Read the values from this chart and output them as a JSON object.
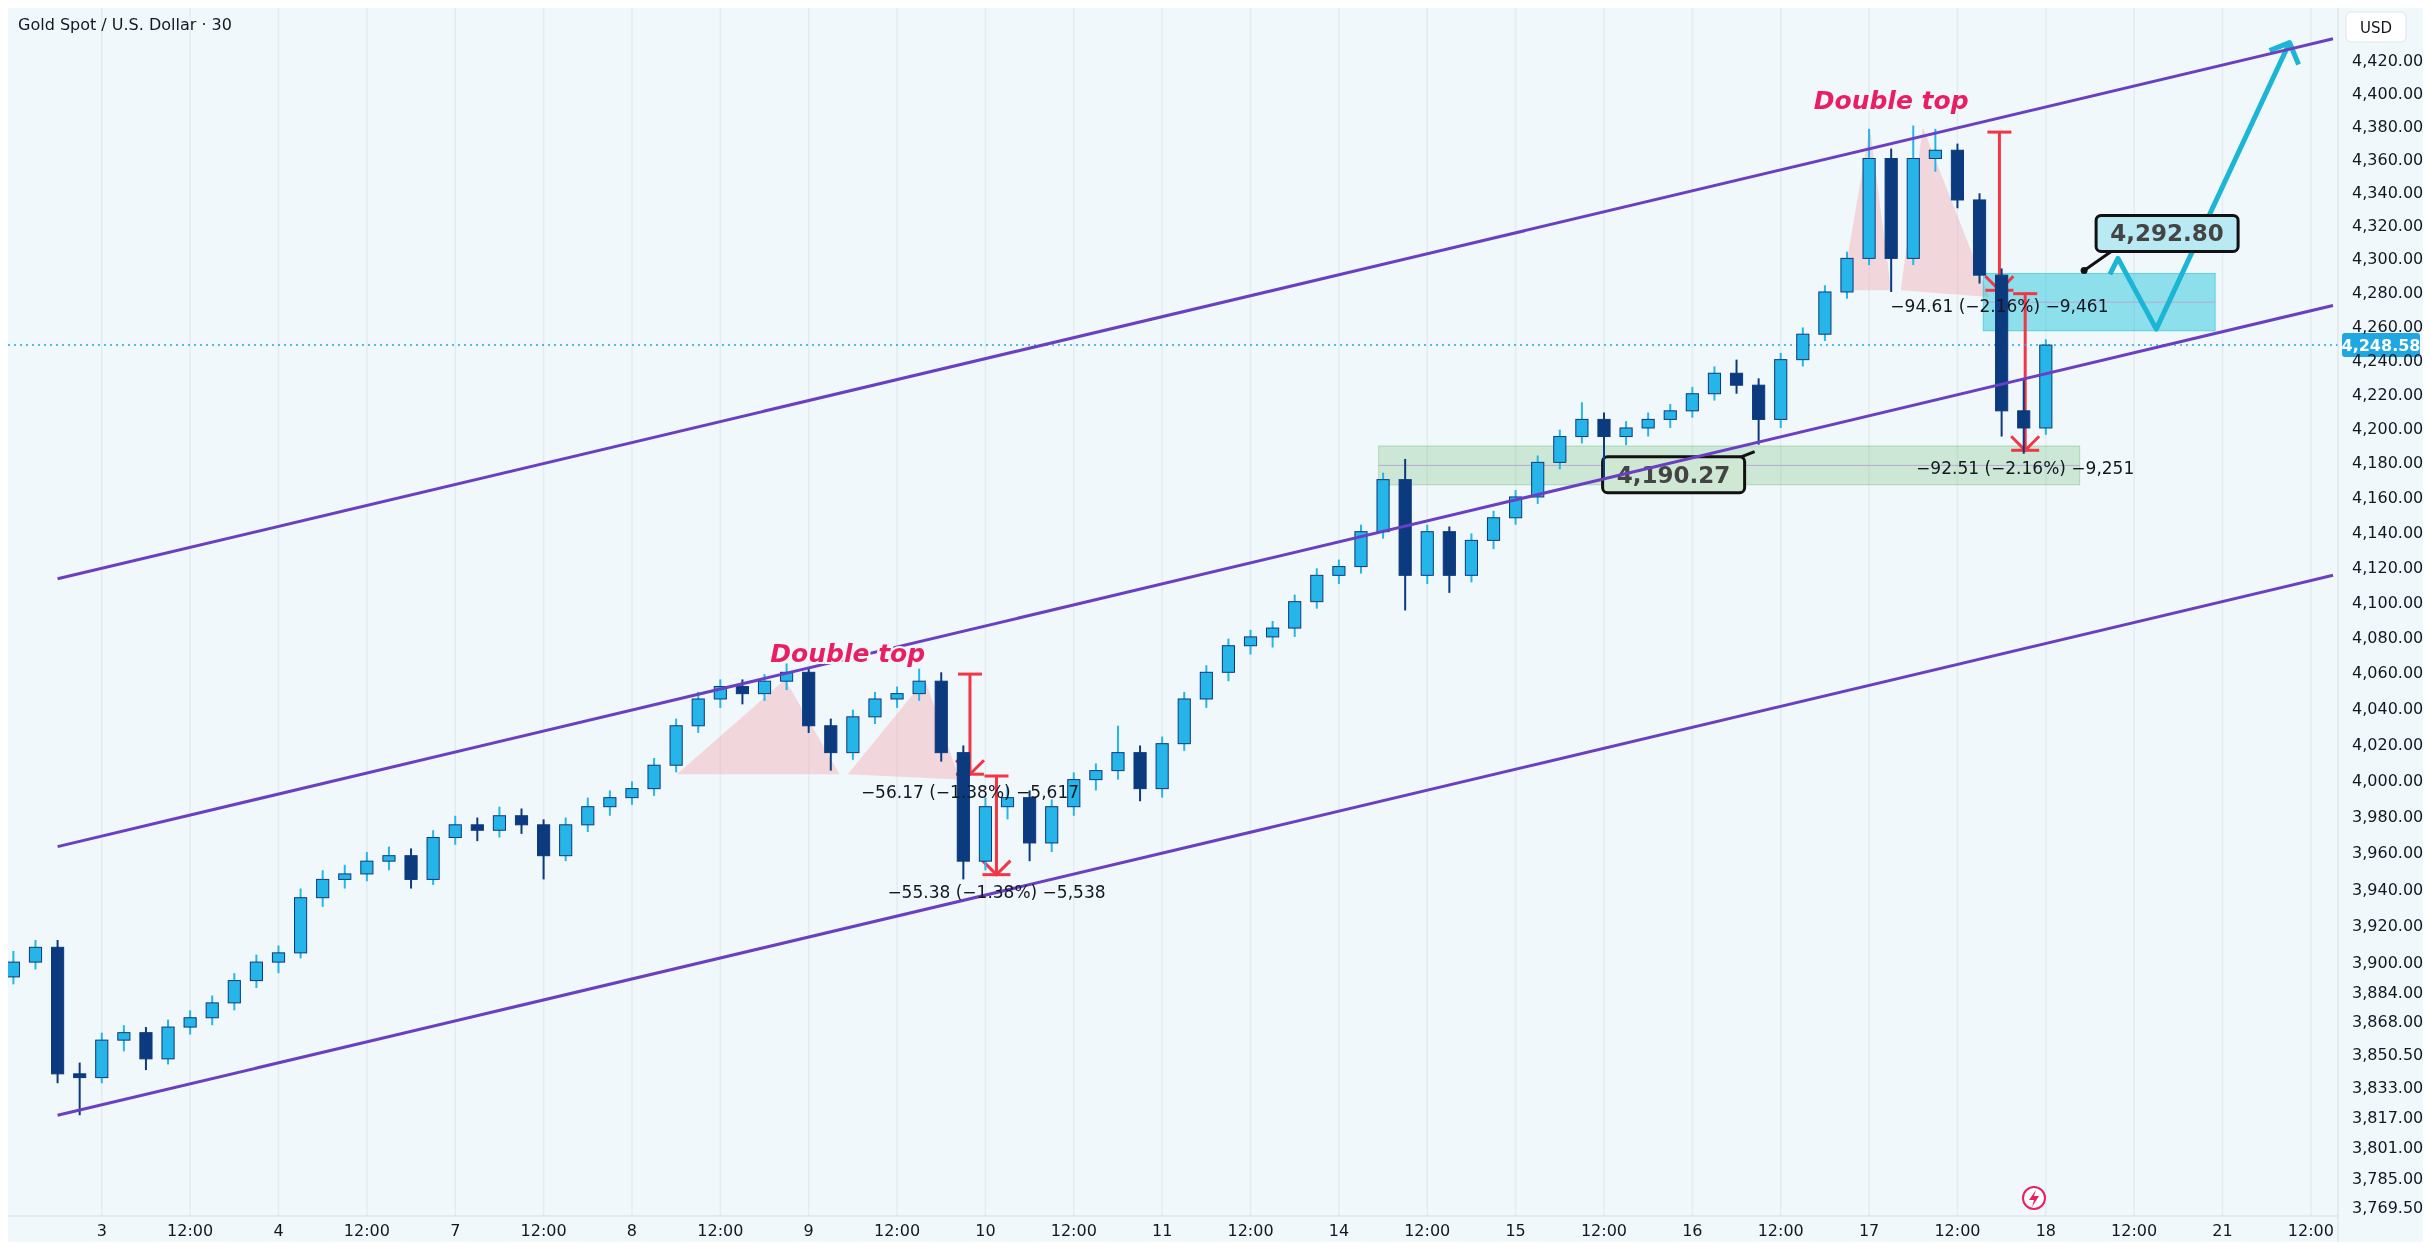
{
  "chart_data": {
    "type": "candlestick",
    "title": "Gold Spot / U.S. Dollar · 30",
    "ylabel": "USD",
    "categories": [
      null,
      null,
      null,
      null,
      "3",
      null,
      null,
      null,
      "12:00",
      null,
      null,
      null,
      "4",
      null,
      null,
      null,
      "12:00",
      null,
      null,
      null,
      "7",
      null,
      null,
      null,
      "12:00",
      null,
      null,
      null,
      "8",
      null,
      null,
      null,
      "12:00",
      null,
      null,
      null,
      "9",
      null,
      null,
      null,
      "12:00",
      null,
      null,
      null,
      "10",
      null,
      null,
      null,
      "12:00",
      null,
      null,
      null,
      "11",
      null,
      null,
      null,
      "12:00",
      null,
      null,
      null,
      "14",
      null,
      null,
      null,
      "12:00",
      null,
      null,
      null,
      "15",
      null,
      null,
      null,
      "12:00",
      null,
      null,
      null,
      "16",
      null,
      null,
      null,
      "12:00",
      null,
      null,
      null,
      "17",
      null,
      null,
      null,
      "12:00",
      null,
      null,
      null,
      "18",
      null,
      null,
      null,
      "12:00",
      null,
      null,
      null,
      "21",
      null,
      null,
      null,
      "12:00",
      null
    ],
    "ohlc": [
      [
        3892,
        3906,
        3888,
        3900
      ],
      [
        3900,
        3912,
        3896,
        3908
      ],
      [
        3908,
        3912,
        3835,
        3840
      ],
      [
        3840,
        3846,
        3818,
        3838
      ],
      [
        3838,
        3862,
        3835,
        3858
      ],
      [
        3858,
        3866,
        3852,
        3862
      ],
      [
        3862,
        3865,
        3842,
        3848
      ],
      [
        3848,
        3869,
        3845,
        3865
      ],
      [
        3865,
        3874,
        3861,
        3870
      ],
      [
        3870,
        3882,
        3866,
        3878
      ],
      [
        3878,
        3894,
        3874,
        3890
      ],
      [
        3890,
        3904,
        3886,
        3900
      ],
      [
        3900,
        3909,
        3894,
        3905
      ],
      [
        3905,
        3940,
        3902,
        3935
      ],
      [
        3935,
        3950,
        3930,
        3945
      ],
      [
        3945,
        3953,
        3940,
        3948
      ],
      [
        3948,
        3960,
        3944,
        3955
      ],
      [
        3955,
        3963,
        3950,
        3958
      ],
      [
        3958,
        3962,
        3940,
        3945
      ],
      [
        3945,
        3972,
        3942,
        3968
      ],
      [
        3968,
        3980,
        3964,
        3975
      ],
      [
        3975,
        3979,
        3966,
        3972
      ],
      [
        3972,
        3985,
        3968,
        3980
      ],
      [
        3980,
        3984,
        3970,
        3975
      ],
      [
        3975,
        3978,
        3945,
        3958
      ],
      [
        3958,
        3979,
        3955,
        3975
      ],
      [
        3975,
        3990,
        3971,
        3985
      ],
      [
        3985,
        3994,
        3980,
        3990
      ],
      [
        3990,
        3999,
        3986,
        3995
      ],
      [
        3995,
        4012,
        3991,
        4008
      ],
      [
        4008,
        4034,
        4004,
        4030
      ],
      [
        4030,
        4049,
        4026,
        4045
      ],
      [
        4045,
        4056,
        4040,
        4052
      ],
      [
        4052,
        4056,
        4042,
        4048
      ],
      [
        4048,
        4059,
        4044,
        4055
      ],
      [
        4055,
        4065,
        4050,
        4060
      ],
      [
        4060,
        4063,
        4026,
        4030
      ],
      [
        4030,
        4034,
        4005,
        4015
      ],
      [
        4015,
        4039,
        4011,
        4035
      ],
      [
        4035,
        4049,
        4031,
        4045
      ],
      [
        4045,
        4052,
        4040,
        4048
      ],
      [
        4048,
        4062,
        4044,
        4055
      ],
      [
        4055,
        4060,
        4010,
        4015
      ],
      [
        4015,
        4019,
        3945,
        3955
      ],
      [
        3955,
        3990,
        3950,
        3985
      ],
      [
        3985,
        3996,
        3978,
        3990
      ],
      [
        3990,
        3994,
        3955,
        3965
      ],
      [
        3965,
        3989,
        3960,
        3985
      ],
      [
        3985,
        4004,
        3980,
        4000
      ],
      [
        4000,
        4009,
        3994,
        4005
      ],
      [
        4005,
        4030,
        4000,
        4015
      ],
      [
        4015,
        4019,
        3988,
        3995
      ],
      [
        3995,
        4024,
        3990,
        4020
      ],
      [
        4020,
        4049,
        4016,
        4045
      ],
      [
        4045,
        4064,
        4040,
        4060
      ],
      [
        4060,
        4079,
        4055,
        4075
      ],
      [
        4075,
        4084,
        4070,
        4080
      ],
      [
        4080,
        4089,
        4074,
        4085
      ],
      [
        4085,
        4104,
        4080,
        4100
      ],
      [
        4100,
        4119,
        4096,
        4115
      ],
      [
        4115,
        4124,
        4110,
        4120
      ],
      [
        4120,
        4144,
        4116,
        4140
      ],
      [
        4140,
        4174,
        4136,
        4170
      ],
      [
        4170,
        4182,
        4095,
        4115
      ],
      [
        4115,
        4144,
        4110,
        4140
      ],
      [
        4140,
        4143,
        4105,
        4115
      ],
      [
        4115,
        4139,
        4111,
        4135
      ],
      [
        4135,
        4152,
        4130,
        4148
      ],
      [
        4148,
        4164,
        4144,
        4160
      ],
      [
        4160,
        4184,
        4156,
        4180
      ],
      [
        4180,
        4199,
        4176,
        4195
      ],
      [
        4195,
        4215,
        4191,
        4205
      ],
      [
        4205,
        4209,
        4170,
        4195
      ],
      [
        4195,
        4204,
        4190,
        4200
      ],
      [
        4200,
        4209,
        4195,
        4205
      ],
      [
        4205,
        4214,
        4200,
        4210
      ],
      [
        4210,
        4224,
        4206,
        4220
      ],
      [
        4220,
        4236,
        4216,
        4232
      ],
      [
        4232,
        4240,
        4220,
        4225
      ],
      [
        4225,
        4229,
        4190.27,
        4205
      ],
      [
        4205,
        4244,
        4200,
        4240
      ],
      [
        4240,
        4259,
        4236,
        4255
      ],
      [
        4255,
        4284,
        4251,
        4280
      ],
      [
        4280,
        4304,
        4276,
        4300
      ],
      [
        4300,
        4378,
        4296,
        4360
      ],
      [
        4360,
        4366,
        4280,
        4300
      ],
      [
        4300,
        4380,
        4296,
        4360
      ],
      [
        4360,
        4378,
        4352,
        4365
      ],
      [
        4365,
        4369,
        4330,
        4335
      ],
      [
        4335,
        4339,
        4285,
        4290
      ],
      [
        4290,
        4294,
        4195,
        4210
      ],
      [
        4210,
        4228,
        4185,
        4200
      ],
      [
        4200,
        4252,
        4196,
        4248.58
      ],
      null,
      null,
      null,
      null,
      null,
      null,
      null,
      null,
      null,
      null,
      null,
      null,
      null
    ],
    "series": [
      {
        "type": "line",
        "color": "#6a3fc1",
        "values": [
          null,
          null,
          4113,
          null,
          null,
          null,
          null,
          null,
          null,
          null,
          null,
          null,
          null,
          null,
          null,
          null,
          null,
          null,
          null,
          null,
          null,
          null,
          null,
          null,
          null,
          null,
          null,
          null,
          null,
          null,
          null,
          null,
          null,
          null,
          null,
          null,
          null,
          null,
          null,
          null,
          null,
          null,
          null,
          null,
          null,
          null,
          null,
          null,
          null,
          null,
          null,
          null,
          null,
          null,
          null,
          null,
          null,
          null,
          null,
          null,
          null,
          null,
          null,
          null,
          null,
          null,
          null,
          null,
          null,
          null,
          null,
          null,
          null,
          null,
          null,
          null,
          null,
          null,
          null,
          null,
          null,
          null,
          null,
          null,
          null,
          null,
          null,
          null,
          null,
          null,
          null,
          null,
          null,
          null,
          null,
          null,
          null,
          null,
          null,
          null,
          null,
          null,
          null,
          null,
          null,
          4433
        ]
      },
      {
        "type": "line",
        "color": "#6a3fc1",
        "values": [
          null,
          null,
          3963,
          null,
          null,
          null,
          null,
          null,
          null,
          null,
          null,
          null,
          null,
          null,
          null,
          null,
          null,
          null,
          null,
          null,
          null,
          null,
          null,
          null,
          null,
          null,
          null,
          null,
          null,
          null,
          null,
          null,
          null,
          null,
          null,
          null,
          null,
          null,
          null,
          null,
          null,
          null,
          null,
          null,
          null,
          null,
          null,
          null,
          null,
          null,
          null,
          null,
          null,
          null,
          null,
          null,
          null,
          null,
          null,
          null,
          null,
          null,
          null,
          null,
          null,
          null,
          null,
          null,
          null,
          null,
          null,
          null,
          null,
          null,
          null,
          null,
          null,
          null,
          null,
          null,
          null,
          null,
          null,
          null,
          null,
          null,
          null,
          null,
          null,
          null,
          null,
          null,
          null,
          null,
          null,
          null,
          null,
          null,
          null,
          null,
          null,
          null,
          null,
          null,
          null,
          4272
        ]
      },
      {
        "type": "line",
        "color": "#6a3fc1",
        "values": [
          null,
          null,
          3818,
          null,
          null,
          null,
          null,
          null,
          null,
          null,
          null,
          null,
          null,
          null,
          null,
          null,
          null,
          null,
          null,
          null,
          null,
          null,
          null,
          null,
          null,
          null,
          null,
          null,
          null,
          null,
          null,
          null,
          null,
          null,
          null,
          null,
          null,
          null,
          null,
          null,
          null,
          null,
          null,
          null,
          null,
          null,
          null,
          null,
          null,
          null,
          null,
          null,
          null,
          null,
          null,
          null,
          null,
          null,
          null,
          null,
          null,
          null,
          null,
          null,
          null,
          null,
          null,
          null,
          null,
          null,
          null,
          null,
          null,
          null,
          null,
          null,
          null,
          null,
          null,
          null,
          null,
          null,
          null,
          null,
          null,
          null,
          null,
          null,
          null,
          null,
          null,
          null,
          null,
          null,
          null,
          null,
          null,
          null,
          null,
          null,
          null,
          null,
          null,
          null,
          null,
          4115
        ]
      }
    ],
    "ylim": [
      3765,
      4452
    ],
    "yticks": [
      {
        "value": 4420,
        "label": "4,420.00"
      },
      {
        "value": 4400,
        "label": "4,400.00"
      },
      {
        "value": 4380,
        "label": "4,380.00"
      },
      {
        "value": 4360,
        "label": "4,360.00"
      },
      {
        "value": 4340,
        "label": "4,340.00"
      },
      {
        "value": 4320,
        "label": "4,320.00"
      },
      {
        "value": 4300,
        "label": "4,300.00"
      },
      {
        "value": 4280,
        "label": "4,280.00"
      },
      {
        "value": 4260,
        "label": "4,260.00"
      },
      {
        "value": 4240,
        "label": "4,240.00"
      },
      {
        "value": 4220,
        "label": "4,220.00"
      },
      {
        "value": 4200,
        "label": "4,200.00"
      },
      {
        "value": 4180,
        "label": "4,180.00"
      },
      {
        "value": 4160,
        "label": "4,160.00"
      },
      {
        "value": 4140,
        "label": "4,140.00"
      },
      {
        "value": 4120,
        "label": "4,120.00"
      },
      {
        "value": 4100,
        "label": "4,100.00"
      },
      {
        "value": 4080,
        "label": "4,080.00"
      },
      {
        "value": 4060,
        "label": "4,060.00"
      },
      {
        "value": 4040,
        "label": "4,040.00"
      },
      {
        "value": 4020,
        "label": "4,020.00"
      },
      {
        "value": 4000,
        "label": "4,000.00"
      },
      {
        "value": 3980,
        "label": "3,980.00"
      },
      {
        "value": 3960,
        "label": "3,960.00"
      },
      {
        "value": 3940,
        "label": "3,940.00"
      },
      {
        "value": 3920,
        "label": "3,920.00"
      },
      {
        "value": 3900,
        "label": "3,900.00"
      },
      {
        "value": 3884,
        "label": "3,884.00"
      },
      {
        "value": 3868,
        "label": "3,868.00"
      },
      {
        "value": 3850.5,
        "label": "3,850.50"
      },
      {
        "value": 3833,
        "label": "3,833.00"
      },
      {
        "value": 3817,
        "label": "3,817.00"
      },
      {
        "value": 3801,
        "label": "3,801.00"
      },
      {
        "value": 3785,
        "label": "3,785.00"
      },
      {
        "value": 3769.5,
        "label": "3,769.50"
      }
    ],
    "log": "y",
    "grid": "x",
    "ref_lines": [
      {
        "axis": "y",
        "value": 4248.58,
        "label": "4,248.58",
        "color": "#1ea7e1",
        "line_style": "dotted"
      }
    ],
    "annotations": [
      "Double top",
      "Double top",
      "−56.17 (−1.38%) −5,617",
      "−55.38 (−1.38%) −5,538",
      {
        "text": "−94.61 (−2.16%) −9,461",
        "y": 4268
      },
      "−92.51 (−2.16%) −9,251",
      "4,190.27",
      "4,292.80"
    ]
  }
}
